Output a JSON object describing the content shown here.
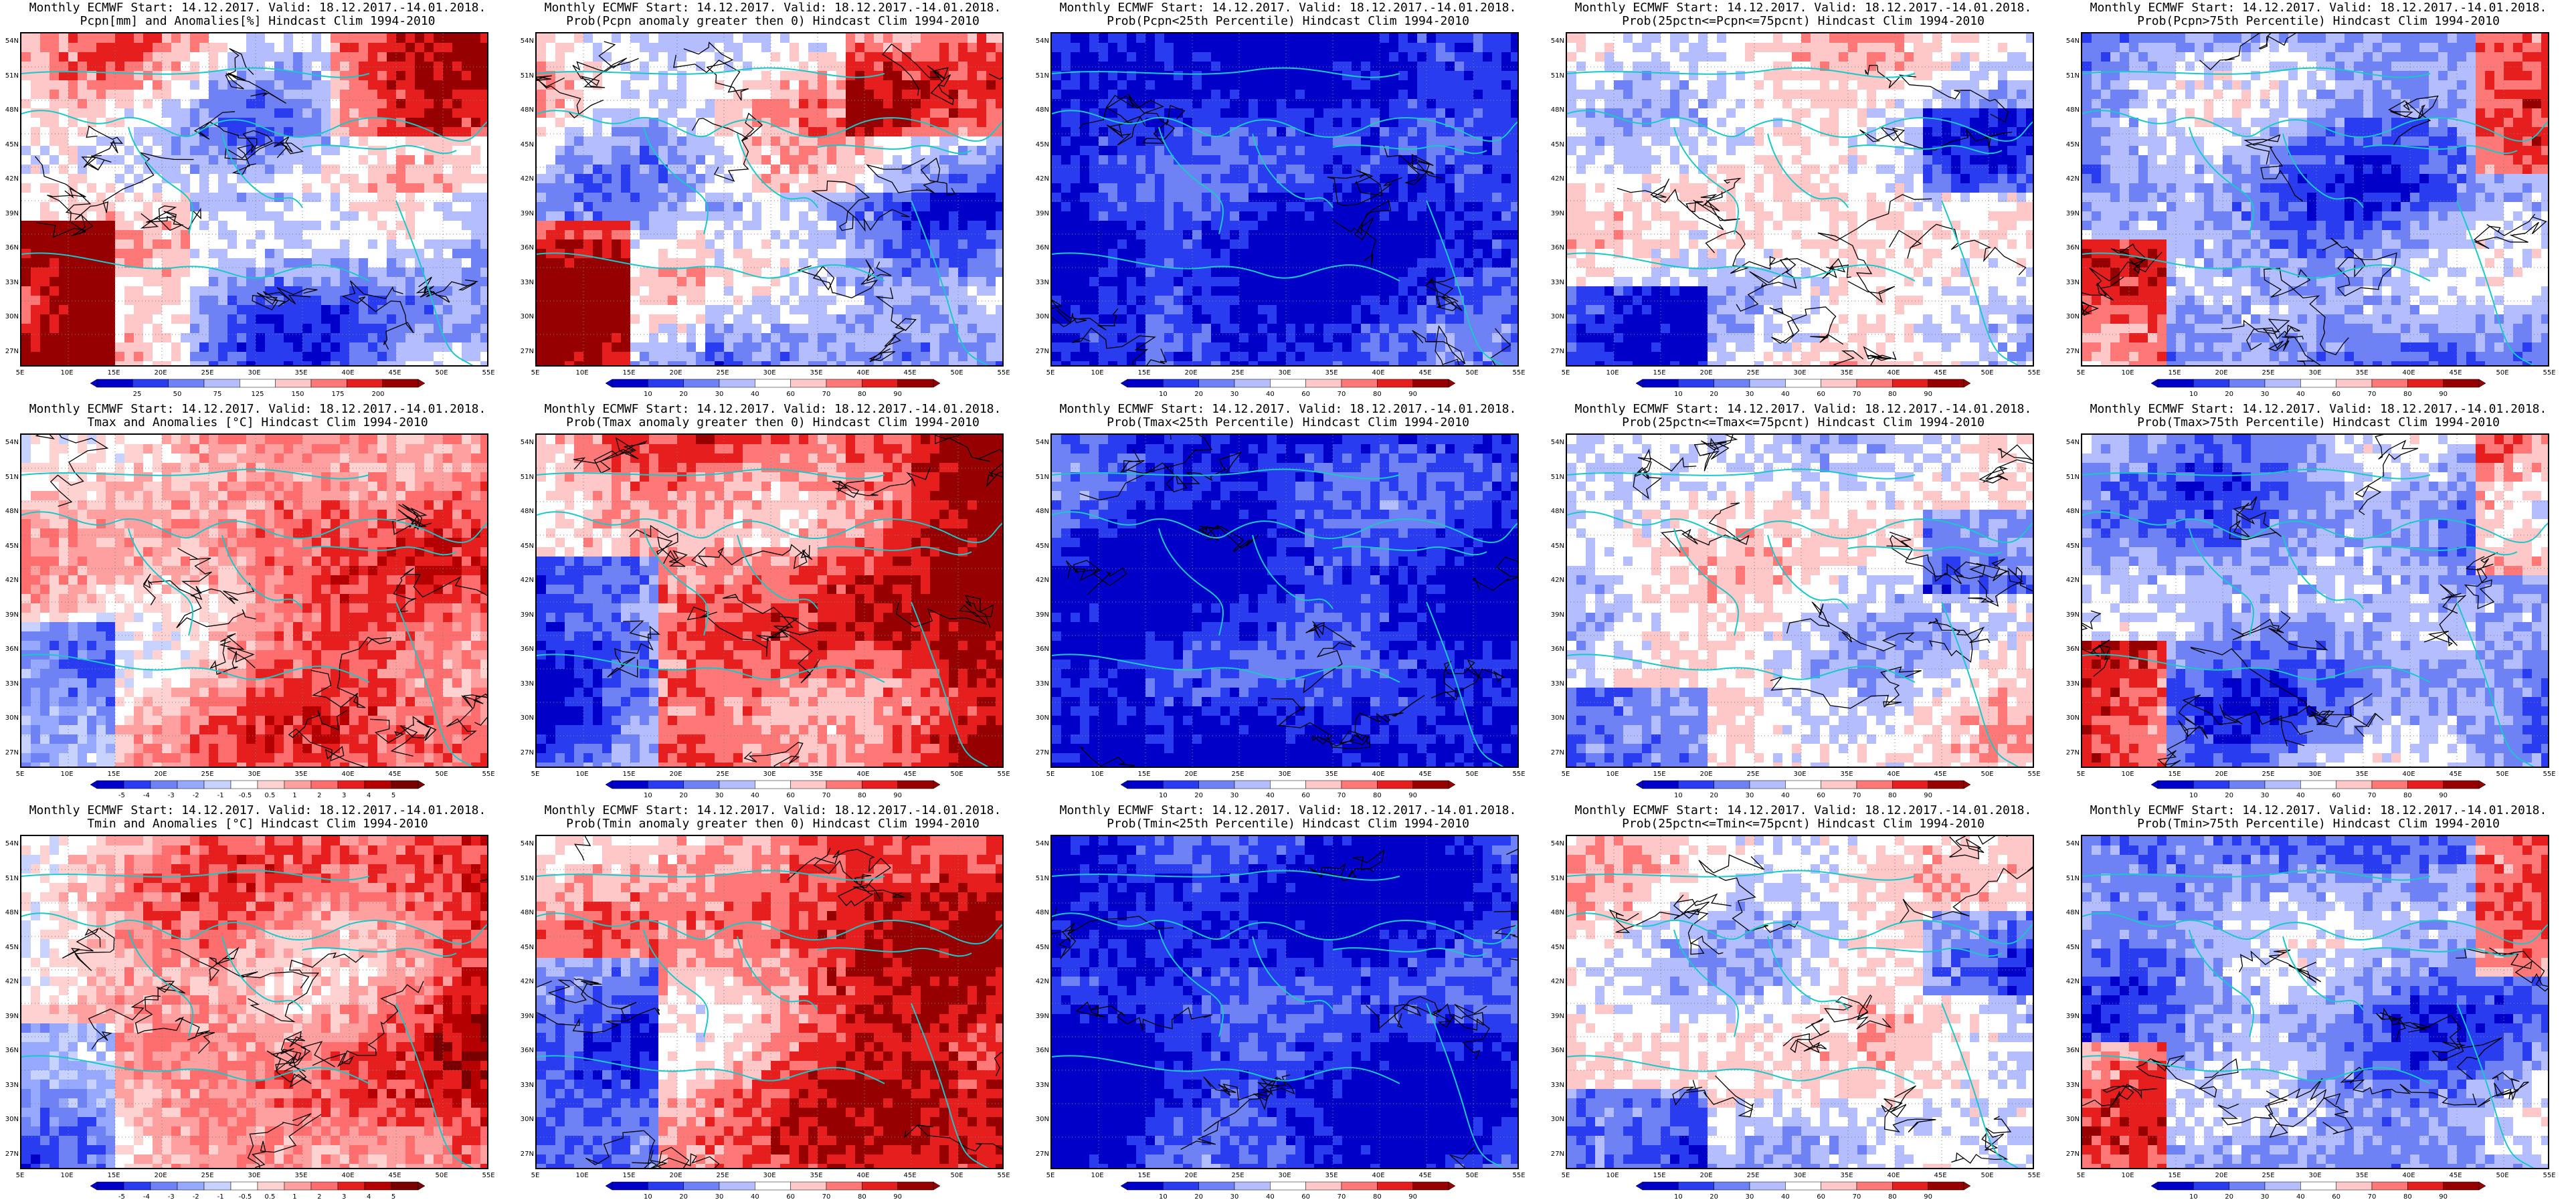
{
  "header_common": "Monthly ECMWF Start: 14.12.2017. Valid: 18.12.2017.-14.01.2018.",
  "lat_labels": [
    "54N",
    "51N",
    "48N",
    "45N",
    "42N",
    "39N",
    "36N",
    "33N",
    "30N",
    "27N"
  ],
  "lon_labels": [
    "5E",
    "10E",
    "15E",
    "20E",
    "25E",
    "30E",
    "35E",
    "40E",
    "45E",
    "50E",
    "55E"
  ],
  "panels": [
    {
      "row": 0,
      "col": 0,
      "subtitle": "Pcpn[mm] and Anomalies[%] Hindcast Clim 1994-2010",
      "scale": "pcpn",
      "colorbar": [
        "25",
        "50",
        "75",
        "125",
        "150",
        "175",
        "200"
      ],
      "warm_region": "south-west",
      "pattern": "mixed"
    },
    {
      "row": 0,
      "col": 1,
      "subtitle": "Prob(Pcpn anomaly greater then 0) Hindcast Clim 1994-2010",
      "scale": "prob",
      "colorbar": [
        "10",
        "20",
        "30",
        "40",
        "60",
        "70",
        "80",
        "90"
      ],
      "pattern": "mixed"
    },
    {
      "row": 0,
      "col": 2,
      "subtitle": "Prob(Pcpn<25th Percentile) Hindcast Clim 1994-2010",
      "scale": "prob",
      "colorbar": [
        "10",
        "20",
        "30",
        "40",
        "60",
        "70",
        "80",
        "90"
      ],
      "pattern": "blue"
    },
    {
      "row": 0,
      "col": 3,
      "subtitle": "Prob(25pctn<=Pcpn<=75pcnt) Hindcast Clim 1994-2010",
      "scale": "prob",
      "colorbar": [
        "10",
        "20",
        "30",
        "40",
        "60",
        "70",
        "80",
        "90"
      ],
      "pattern": "pale"
    },
    {
      "row": 0,
      "col": 4,
      "subtitle": "Prob(Pcpn>75th Percentile) Hindcast Clim 1994-2010",
      "scale": "prob",
      "colorbar": [
        "10",
        "20",
        "30",
        "40",
        "60",
        "70",
        "80",
        "90"
      ],
      "pattern": "blue-mixed"
    },
    {
      "row": 1,
      "col": 0,
      "subtitle": "Tmax and Anomalies [°C] Hindcast Clim 1994-2010",
      "scale": "temp",
      "colorbar": [
        "-5",
        "-4",
        "-3",
        "-2",
        "-1",
        "-0.5",
        "0.5",
        "1",
        "2",
        "3",
        "4",
        "5"
      ],
      "pattern": "warm"
    },
    {
      "row": 1,
      "col": 1,
      "subtitle": "Prob(Tmax anomaly greater then 0) Hindcast Clim 1994-2010",
      "scale": "prob",
      "colorbar": [
        "10",
        "20",
        "30",
        "40",
        "60",
        "70",
        "80",
        "90"
      ],
      "pattern": "red"
    },
    {
      "row": 1,
      "col": 2,
      "subtitle": "Prob(Tmax<25th Percentile) Hindcast Clim 1994-2010",
      "scale": "prob",
      "colorbar": [
        "10",
        "20",
        "30",
        "40",
        "60",
        "70",
        "80",
        "90"
      ],
      "pattern": "blue"
    },
    {
      "row": 1,
      "col": 3,
      "subtitle": "Prob(25pctn<=Tmax<=75pcnt) Hindcast Clim 1994-2010",
      "scale": "prob",
      "colorbar": [
        "10",
        "20",
        "30",
        "40",
        "60",
        "70",
        "80",
        "90"
      ],
      "pattern": "pale"
    },
    {
      "row": 1,
      "col": 4,
      "subtitle": "Prob(Tmax>75th Percentile) Hindcast Clim 1994-2010",
      "scale": "prob",
      "colorbar": [
        "10",
        "20",
        "30",
        "40",
        "60",
        "70",
        "80",
        "90"
      ],
      "pattern": "blue-mixed"
    },
    {
      "row": 2,
      "col": 0,
      "subtitle": "Tmin and Anomalies [°C] Hindcast Clim 1994-2010",
      "scale": "temp",
      "colorbar": [
        "-5",
        "-4",
        "-3",
        "-2",
        "-1",
        "-0.5",
        "0.5",
        "1",
        "2",
        "3",
        "4",
        "5"
      ],
      "pattern": "warm"
    },
    {
      "row": 2,
      "col": 1,
      "subtitle": "Prob(Tmin anomaly greater then 0) Hindcast Clim 1994-2010",
      "scale": "prob",
      "colorbar": [
        "10",
        "20",
        "30",
        "40",
        "60",
        "70",
        "80",
        "90"
      ],
      "pattern": "red"
    },
    {
      "row": 2,
      "col": 2,
      "subtitle": "Prob(Tmin<25th Percentile) Hindcast Clim 1994-2010",
      "scale": "prob",
      "colorbar": [
        "10",
        "20",
        "30",
        "40",
        "60",
        "70",
        "80",
        "90"
      ],
      "pattern": "blue"
    },
    {
      "row": 2,
      "col": 3,
      "subtitle": "Prob(25pctn<=Tmin<=75pcnt) Hindcast Clim 1994-2010",
      "scale": "prob",
      "colorbar": [
        "10",
        "20",
        "30",
        "40",
        "60",
        "70",
        "80",
        "90"
      ],
      "pattern": "pale"
    },
    {
      "row": 2,
      "col": 4,
      "subtitle": "Prob(Tmin>75th Percentile) Hindcast Clim 1994-2010",
      "scale": "prob",
      "colorbar": [
        "10",
        "20",
        "30",
        "40",
        "60",
        "70",
        "80",
        "90"
      ],
      "pattern": "blue-mixed"
    }
  ],
  "colors": {
    "coast": "#19c8c8",
    "contour": "#000000",
    "scale_prob": [
      "#0000c8",
      "#2a3cf0",
      "#6e82f5",
      "#b4beff",
      "#ffffff",
      "#ffc8c8",
      "#ff7878",
      "#e61e1e",
      "#960000"
    ],
    "scale_temp": [
      "#0000c8",
      "#2a3cf0",
      "#6e82f5",
      "#96a8ff",
      "#c8d2ff",
      "#ffffff",
      "#ffd2d2",
      "#ffa0a0",
      "#ff6e6e",
      "#e61e1e",
      "#b40000",
      "#780000"
    ],
    "scale_pcpn": [
      "#0000c8",
      "#2a3cf0",
      "#6e82f5",
      "#b4beff",
      "#ffffff",
      "#ffc8c8",
      "#ff7878",
      "#e61e1e",
      "#960000"
    ]
  }
}
